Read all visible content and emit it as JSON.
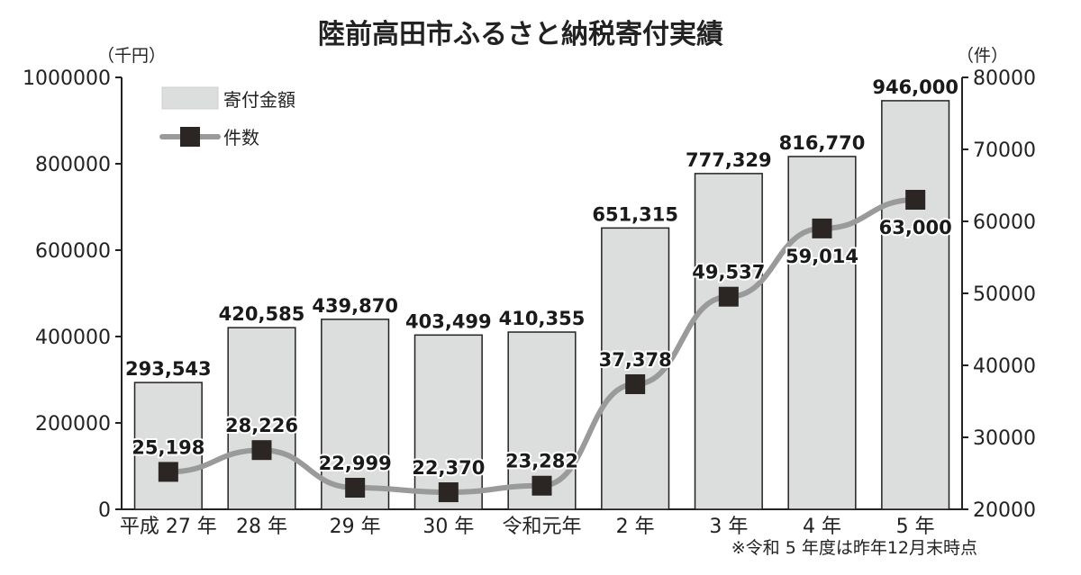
{
  "chart_data": {
    "type": "bar",
    "title": "陸前高田市ふるさと納税寄付実績",
    "left_unit": "（千円）",
    "right_unit": "（件）",
    "categories": [
      "平成 27 年",
      "28 年",
      "29 年",
      "30 年",
      "令和元年",
      "2 年",
      "3 年",
      "4 年",
      "5 年"
    ],
    "left_ticks": [
      "0",
      "200000",
      "400000",
      "600000",
      "800000",
      "1000000"
    ],
    "right_ticks": [
      "20000",
      "30000",
      "40000",
      "50000",
      "60000",
      "70000",
      "80000"
    ],
    "ylim_left": [
      0,
      1000000
    ],
    "ylim_right": [
      20000,
      80000
    ],
    "series": [
      {
        "name": "寄付金額",
        "type": "bar",
        "axis": "left",
        "values": [
          293543,
          420585,
          439870,
          403499,
          410355,
          651315,
          777329,
          816770,
          946000
        ],
        "labels": [
          "293,543",
          "420,585",
          "439,870",
          "403,499",
          "410,355",
          "651,315",
          "777,329",
          "816,770",
          "946,000"
        ],
        "color": "#dcdddd"
      },
      {
        "name": "件数",
        "type": "line",
        "axis": "right",
        "values": [
          25198,
          28226,
          22999,
          22370,
          23282,
          37378,
          49537,
          59014,
          63000
        ],
        "labels": [
          "25,198",
          "28,226",
          "22,999",
          "22,370",
          "23,282",
          "37,378",
          "49,537",
          "59,014",
          "63,000"
        ],
        "line_color": "#9a9a9a",
        "marker_color": "#2b2523"
      }
    ],
    "legend_position": "top-left",
    "grid": false,
    "footnote": "※令和 5 年度は昨年12月末時点"
  }
}
